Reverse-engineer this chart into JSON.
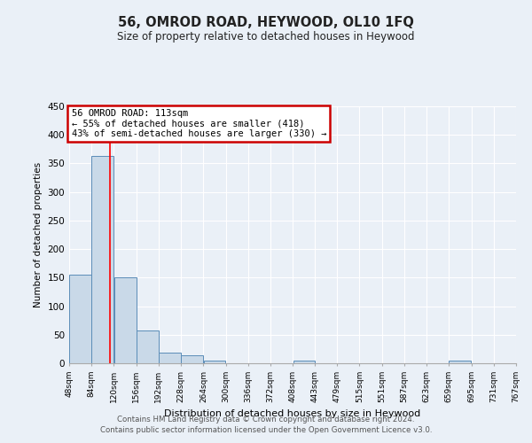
{
  "title": "56, OMROD ROAD, HEYWOOD, OL10 1FQ",
  "subtitle": "Size of property relative to detached houses in Heywood",
  "xlabel": "Distribution of detached houses by size in Heywood",
  "ylabel": "Number of detached properties",
  "footer_line1": "Contains HM Land Registry data © Crown copyright and database right 2024.",
  "footer_line2": "Contains public sector information licensed under the Open Government Licence v3.0.",
  "bin_edges": [
    48,
    84,
    120,
    156,
    192,
    228,
    264,
    300,
    336,
    372,
    408,
    443,
    479,
    515,
    551,
    587,
    623,
    659,
    695,
    731,
    767
  ],
  "bin_labels": [
    "48sqm",
    "84sqm",
    "120sqm",
    "156sqm",
    "192sqm",
    "228sqm",
    "264sqm",
    "300sqm",
    "336sqm",
    "372sqm",
    "408sqm",
    "443sqm",
    "479sqm",
    "515sqm",
    "551sqm",
    "587sqm",
    "623sqm",
    "659sqm",
    "695sqm",
    "731sqm",
    "767sqm"
  ],
  "bar_heights": [
    155,
    363,
    150,
    58,
    18,
    14,
    5,
    0,
    0,
    0,
    5,
    0,
    0,
    0,
    0,
    0,
    0,
    5,
    0,
    0
  ],
  "bar_color": "#c9d9e8",
  "bar_edge_color": "#5b8db8",
  "red_line_x": 113,
  "ylim": [
    0,
    450
  ],
  "yticks": [
    0,
    50,
    100,
    150,
    200,
    250,
    300,
    350,
    400,
    450
  ],
  "annotation_line1": "56 OMROD ROAD: 113sqm",
  "annotation_line2": "← 55% of detached houses are smaller (418)",
  "annotation_line3": "43% of semi-detached houses are larger (330) →",
  "annotation_box_color": "#ffffff",
  "annotation_box_edge": "#cc0000",
  "bg_color": "#eaf0f7",
  "grid_color": "#d0dce8",
  "title_fontsize": 10.5,
  "subtitle_fontsize": 8.5
}
